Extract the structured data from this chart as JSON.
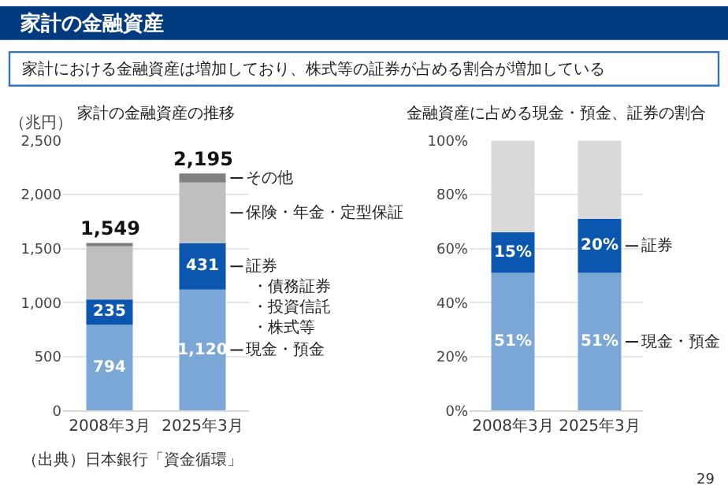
{
  "chart_data": [
    {
      "type": "other",
      "title": "家計の金融資産",
      "subtitle": "家計における金融資産は増加しており、株式等の証券が占める割合が増加している",
      "annotations": [
        "（出典）日本銀行「資金循環」",
        "29"
      ]
    },
    {
      "type": "bar",
      "stacked": true,
      "title": "家計の金融資産の推移",
      "ylabel": "（兆円）",
      "categories": [
        "2008年3月",
        "2025年3月"
      ],
      "ylim": [
        0,
        2500
      ],
      "yticks": [
        0,
        500,
        {
          "value": 1000,
          "label": "1,000"
        },
        {
          "value": 1500,
          "label": "1,500"
        },
        {
          "value": 2000,
          "label": "2,000"
        },
        {
          "value": 2500,
          "label": "2,500"
        }
      ],
      "grid": "y",
      "totals": [
        "1,549",
        "2,195"
      ],
      "annotations": [
        "・債務証券",
        "・投資信託",
        "・株式等"
      ],
      "series": [
        {
          "name": "現金・預金",
          "color": "#7aa7d6",
          "values": [
            794,
            1120
          ],
          "value_labels": [
            "794",
            "1,120"
          ]
        },
        {
          "name": "証券",
          "color": "#0b57b0",
          "values": [
            235,
            431
          ],
          "value_labels": [
            "235",
            "431"
          ]
        },
        {
          "name": "保険・年金・定型保証",
          "color": "#bfbfbf",
          "values": [
            500,
            560
          ]
        },
        {
          "name": "その他",
          "color": "#808080",
          "values": [
            20,
            85
          ]
        }
      ]
    },
    {
      "type": "bar",
      "stacked": true,
      "title": "金融資産に占める現金・預金、証券の割合",
      "categories": [
        "2008年3月",
        "2025年3月"
      ],
      "ylim": [
        0,
        100
      ],
      "yticks": [
        {
          "value": 0,
          "label": "0%"
        },
        {
          "value": 20,
          "label": "20%"
        },
        {
          "value": 40,
          "label": "40%"
        },
        {
          "value": 60,
          "label": "60%"
        },
        {
          "value": 80,
          "label": "80%"
        },
        {
          "value": 100,
          "label": "100%"
        }
      ],
      "grid": "y",
      "series": [
        {
          "name": "現金・預金",
          "color": "#7aa7d6",
          "values": [
            51,
            51
          ],
          "value_labels": [
            "51%",
            "51%"
          ]
        },
        {
          "name": "証券",
          "color": "#0b57b0",
          "values": [
            15,
            20
          ],
          "value_labels": [
            "15%",
            "20%"
          ]
        },
        {
          "color": "#d9d9d9",
          "values": [
            34,
            29
          ]
        }
      ]
    }
  ]
}
